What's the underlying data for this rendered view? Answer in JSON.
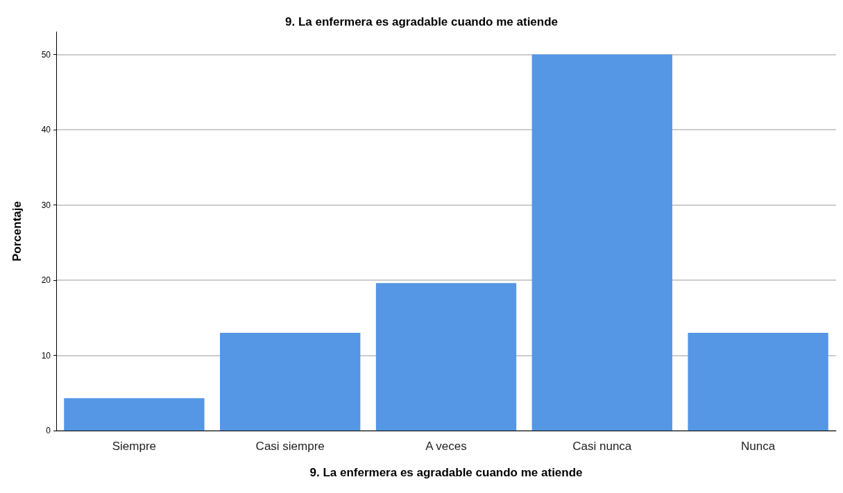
{
  "chart_data": {
    "type": "bar",
    "title": "9. La enfermera es agradable cuando me atiende",
    "xlabel": "9. La enfermera es agradable cuando me atiende",
    "ylabel": "Porcentaje",
    "categories": [
      "Siempre",
      "Casi siempre",
      "A veces",
      "Casi nunca",
      "Nunca"
    ],
    "values": [
      4.3,
      13.0,
      19.6,
      50.0,
      13.0
    ],
    "color": "#5596e5",
    "ylim": [
      0,
      53
    ],
    "yticks": [
      0,
      10,
      20,
      30,
      40,
      50
    ],
    "grid": "y"
  }
}
